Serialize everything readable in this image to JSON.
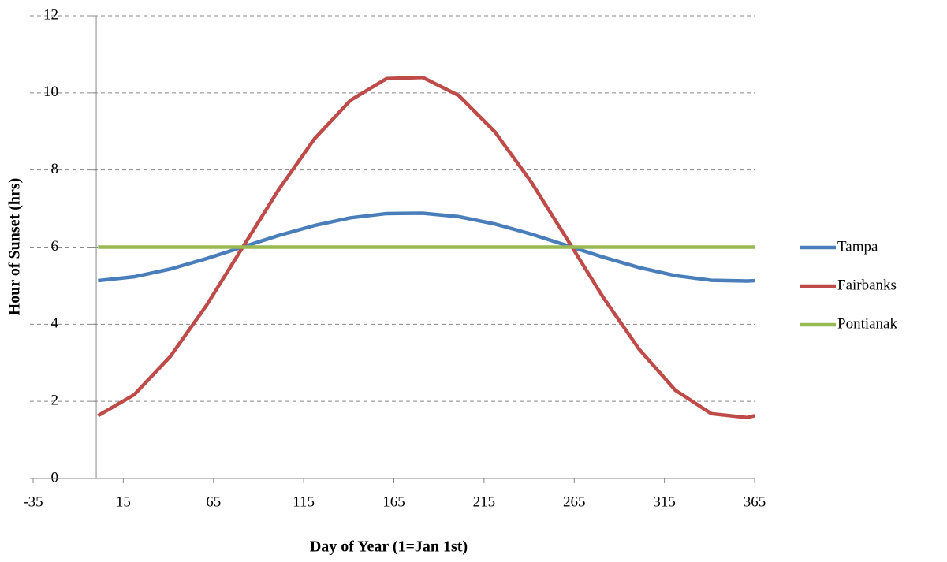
{
  "chart_data": {
    "type": "line",
    "x_label": "Day of Year (1=Jan 1st)",
    "y_label": "Hour of Sunset (hrs)",
    "x": [
      1,
      21,
      41,
      61,
      81,
      101,
      121,
      141,
      161,
      181,
      201,
      221,
      241,
      261,
      281,
      301,
      321,
      341,
      361,
      365
    ],
    "series": [
      {
        "name": "Tampa",
        "color": "#4a7ebb",
        "values": [
          5.13,
          5.23,
          5.43,
          5.7,
          6.0,
          6.3,
          6.56,
          6.76,
          6.87,
          6.88,
          6.79,
          6.6,
          6.34,
          6.04,
          5.74,
          5.47,
          5.26,
          5.14,
          5.12,
          5.13
        ]
      },
      {
        "name": "Fairbanks",
        "color": "#be4b48",
        "values": [
          1.63,
          2.17,
          3.16,
          4.48,
          5.98,
          7.48,
          8.81,
          9.81,
          10.37,
          10.4,
          9.93,
          8.99,
          7.7,
          6.21,
          4.7,
          3.35,
          2.29,
          1.68,
          1.58,
          1.63
        ]
      },
      {
        "name": "Pontianak",
        "color": "#98b954",
        "values": [
          6,
          6,
          6,
          6,
          6,
          6,
          6,
          6,
          6,
          6,
          6,
          6,
          6,
          6,
          6,
          6,
          6,
          6,
          6,
          6
        ]
      }
    ],
    "xlim": [
      -35,
      365
    ],
    "xticks": [
      -35,
      15,
      65,
      115,
      165,
      215,
      265,
      315,
      365
    ],
    "ylim": [
      0,
      12
    ],
    "yticks": [
      0,
      2,
      4,
      6,
      8,
      10,
      12
    ],
    "grid": true,
    "legend": "right"
  }
}
